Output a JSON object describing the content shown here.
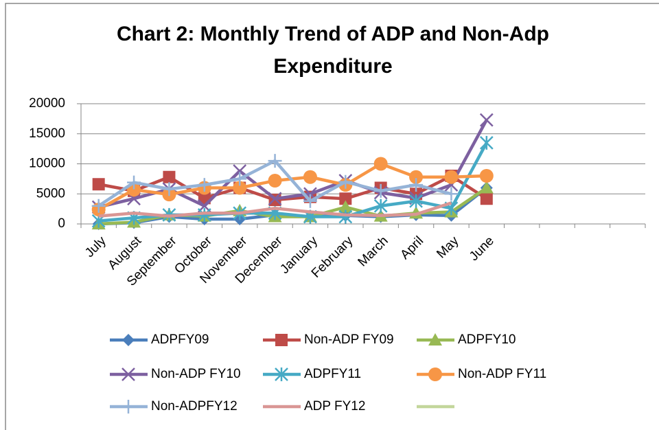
{
  "chart_data": {
    "type": "line",
    "title": "Chart 2: Monthly Trend of ADP and Non-Adp Expenditure",
    "categories": [
      "July",
      "August",
      "September",
      "October",
      "November",
      "December",
      "January",
      "February",
      "March",
      "April",
      "May",
      "June",
      null,
      null,
      null,
      null
    ],
    "ylim": [
      0,
      20000
    ],
    "yticks": [
      0,
      5000,
      10000,
      15000,
      20000
    ],
    "grid": true,
    "legend": "bottom",
    "series": [
      {
        "name": "ADPFY09",
        "color": "#4a7ebb",
        "marker": "diamond",
        "values": [
          0,
          200,
          1200,
          800,
          800,
          1500,
          1200,
          1400,
          1200,
          1500,
          1400,
          6000,
          null,
          null,
          null,
          null
        ]
      },
      {
        "name": "Non-ADP FY09",
        "color": "#be4b48",
        "marker": "square",
        "values": [
          6600,
          5500,
          7800,
          4300,
          6000,
          4000,
          4500,
          4200,
          6000,
          5000,
          8000,
          4200,
          null,
          null,
          null,
          null
        ]
      },
      {
        "name": "ADPFY10",
        "color": "#98b954",
        "marker": "triangle",
        "values": [
          0,
          300,
          1500,
          1300,
          2200,
          1200,
          1200,
          2800,
          1300,
          1800,
          2000,
          6000,
          null,
          null,
          null,
          null
        ]
      },
      {
        "name": "Non-ADP FY10",
        "color": "#7d60a0",
        "marker": "x",
        "values": [
          2800,
          4200,
          5800,
          3000,
          8800,
          4200,
          5000,
          7200,
          5200,
          4300,
          6500,
          17300,
          null,
          null,
          null,
          null
        ]
      },
      {
        "name": "ADPFY11",
        "color": "#46aac5",
        "marker": "star",
        "values": [
          500,
          1000,
          1500,
          1500,
          1800,
          1800,
          1200,
          1200,
          3000,
          3800,
          2600,
          13500,
          null,
          null,
          null,
          null
        ]
      },
      {
        "name": "Non-ADP FY11",
        "color": "#f79646",
        "marker": "circle",
        "values": [
          2400,
          5700,
          4900,
          6000,
          6000,
          7200,
          7800,
          6500,
          10000,
          7800,
          7800,
          8000,
          null,
          null,
          null,
          null
        ]
      },
      {
        "name": "Non-ADPFY12",
        "color": "#95b3d7",
        "marker": "plus",
        "values": [
          3000,
          6900,
          5800,
          6500,
          7500,
          10500,
          3800,
          7000,
          5500,
          6500,
          5000,
          null,
          null,
          null,
          null,
          null
        ]
      },
      {
        "name": "ADP FY12",
        "color": "#d99694",
        "marker": "none",
        "values": [
          1300,
          1800,
          1300,
          1800,
          1800,
          2600,
          2000,
          1500,
          1400,
          1600,
          3500,
          null,
          null,
          null,
          null,
          null
        ]
      },
      {
        "name": null,
        "color": "#c3d69b",
        "marker": "none",
        "values": [
          null,
          null,
          null,
          null,
          null,
          null,
          null,
          null,
          null,
          null,
          null,
          null,
          null,
          null,
          null,
          null
        ]
      }
    ]
  }
}
